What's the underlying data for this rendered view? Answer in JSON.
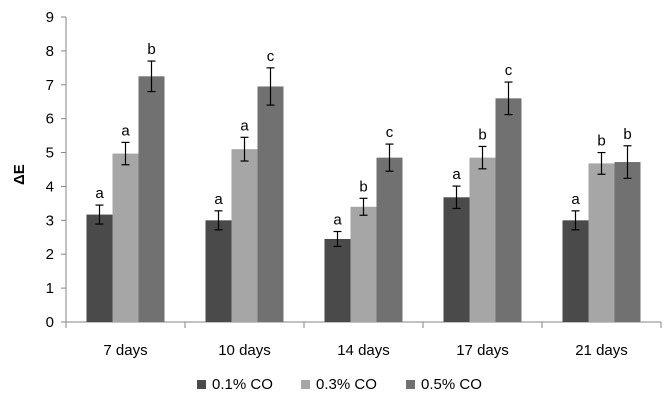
{
  "chart_data": {
    "type": "bar",
    "ylabel": "ΔE",
    "xlabel": "",
    "ylim": [
      0,
      9
    ],
    "yticks": [
      0,
      1,
      2,
      3,
      4,
      5,
      6,
      7,
      8,
      9
    ],
    "grid": false,
    "legend_position": "bottom",
    "categories": [
      "7 days",
      "10 days",
      "14 days",
      "17 days",
      "21 days"
    ],
    "series": [
      {
        "name": "0.1% CO",
        "color": "#4a4a4a",
        "values": [
          3.17,
          3.0,
          2.45,
          3.68,
          3.0
        ],
        "errors": [
          0.28,
          0.28,
          0.22,
          0.33,
          0.28
        ],
        "labels": [
          "a",
          "a",
          "a",
          "a",
          "a"
        ]
      },
      {
        "name": "0.3% CO",
        "color": "#a6a6a6",
        "values": [
          4.97,
          5.1,
          3.4,
          4.85,
          4.68
        ],
        "errors": [
          0.33,
          0.35,
          0.25,
          0.33,
          0.32
        ],
        "labels": [
          "a",
          "a",
          "b",
          "b",
          "b"
        ]
      },
      {
        "name": "0.5% CO",
        "color": "#717171",
        "values": [
          7.25,
          6.95,
          4.85,
          6.6,
          4.72
        ],
        "errors": [
          0.45,
          0.55,
          0.4,
          0.48,
          0.48
        ],
        "labels": [
          "b",
          "c",
          "c",
          "c",
          "b"
        ]
      }
    ]
  }
}
